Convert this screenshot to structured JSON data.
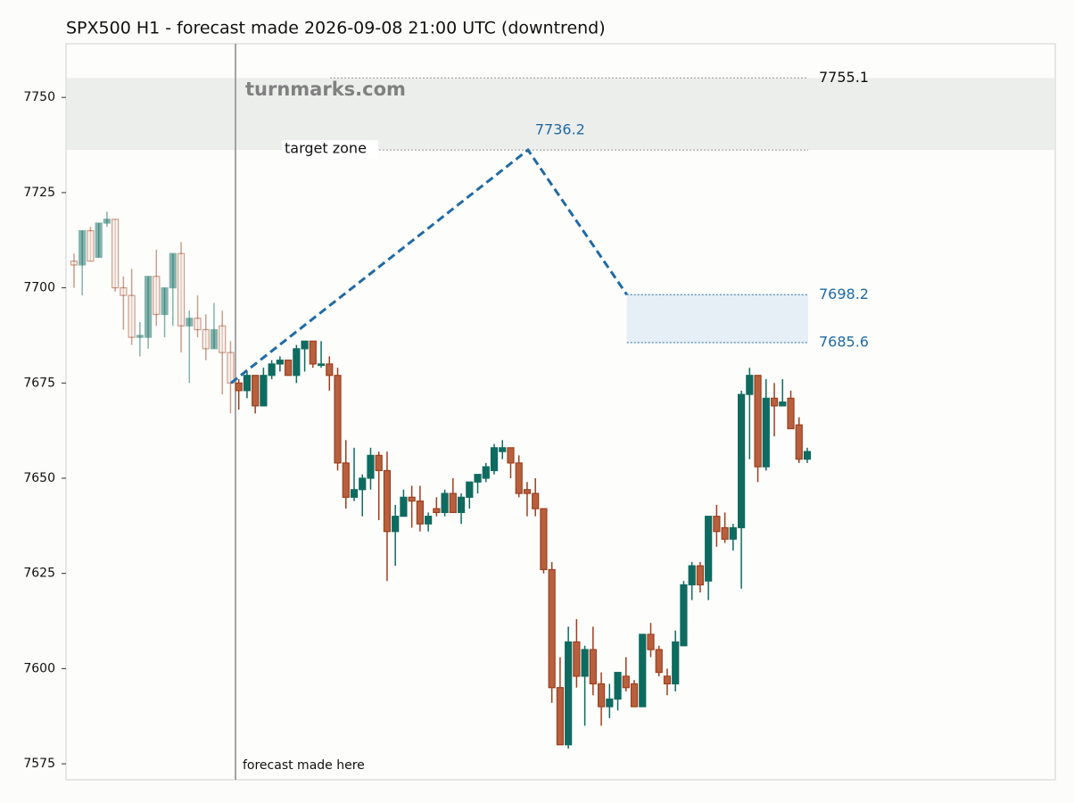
{
  "chart_data": {
    "type": "candlestick",
    "title": "SPX500 H1 - forecast made 2026-09-08 21:00 UTC (downtrend)",
    "watermark": "turnmarks.com",
    "ylim": [
      7570.8,
      7764.1
    ],
    "yticks": [
      7575,
      7600,
      7625,
      7650,
      7675,
      7700,
      7725,
      7750
    ],
    "xlim": [
      -0.97,
      119.1
    ],
    "up_color": "#0e6b60",
    "down_color": "#9c3f1f",
    "open": [
      7707,
      7706,
      7715,
      7708,
      7717,
      7718,
      7700,
      7698,
      7687,
      7687,
      7703,
      7693,
      7700,
      7709,
      7690,
      7692,
      7689,
      7684,
      7690,
      7683,
      7675,
      7673,
      7677,
      7669,
      7677,
      7680,
      7681,
      7677,
      7684,
      7686,
      7680,
      7680,
      7677,
      7654,
      7645,
      7647,
      7650,
      7656,
      7652,
      7636,
      7640,
      7645,
      7644,
      7638,
      7642,
      7641,
      7646,
      7641,
      7645,
      7649,
      7650,
      7652,
      7657,
      7658,
      7654,
      7647,
      7646,
      7642,
      7626,
      7595,
      7580,
      7607,
      7598,
      7605,
      7596,
      7590,
      7592,
      7598,
      7596,
      7590,
      7609,
      7605,
      7598,
      7596,
      7606,
      7622,
      7627,
      7623,
      7640,
      7637,
      7634,
      7637,
      7672,
      7677,
      7653,
      7671,
      7669,
      7671,
      7664,
      7655
    ],
    "high": [
      7709,
      7715,
      7716,
      7717,
      7720,
      7718,
      7703,
      7705,
      7691,
      7703,
      7710,
      7700,
      7709,
      7712,
      7694,
      7698,
      7693,
      7696,
      7694,
      7686,
      7676,
      7678,
      7677,
      7679,
      7681,
      7682,
      7681,
      7685,
      7686,
      7686,
      7686,
      7682,
      7679,
      7660,
      7658,
      7651,
      7658,
      7657,
      7657,
      7643,
      7647,
      7648,
      7648,
      7641,
      7645,
      7647,
      7650,
      7646,
      7649,
      7651,
      7654,
      7659,
      7660,
      7658,
      7656,
      7649,
      7650,
      7642,
      7628,
      7603,
      7611,
      7613,
      7606,
      7611,
      7599,
      7596,
      7599,
      7603,
      7597,
      7609,
      7612,
      7606,
      7600,
      7610,
      7623,
      7628,
      7628,
      7640,
      7643,
      7641,
      7638,
      7673,
      7679,
      7677,
      7676,
      7675,
      7676,
      7673,
      7666,
      7658
    ],
    "low": [
      7700,
      7698,
      7707,
      7708,
      7716,
      7699,
      7689,
      7685,
      7682,
      7684,
      7690,
      7687,
      7690,
      7683,
      7675,
      7687,
      7681,
      7684,
      7672,
      7667,
      7668,
      7671,
      7667,
      7669,
      7676,
      7678,
      7677,
      7675,
      7678,
      7679,
      7679,
      7673,
      7652,
      7642,
      7644,
      7640,
      7647,
      7639,
      7623,
      7627,
      7640,
      7637,
      7636,
      7636,
      7640,
      7640,
      7641,
      7638,
      7642,
      7646,
      7649,
      7651,
      7655,
      7650,
      7645,
      7640,
      7640,
      7625,
      7591,
      7580,
      7579,
      7595,
      7585,
      7593,
      7585,
      7587,
      7589,
      7594,
      7590,
      7590,
      7603,
      7598,
      7593,
      7594,
      7606,
      7618,
      7620,
      7618,
      7632,
      7633,
      7631,
      7621,
      7655,
      7649,
      7652,
      7661,
      7669,
      7663,
      7654,
      7654
    ],
    "close": [
      7706,
      7715,
      7707,
      7717,
      7718,
      7700,
      7698,
      7687,
      7687.5,
      7703,
      7693,
      7700,
      7709,
      7690,
      7692,
      7689,
      7684,
      7689,
      7683,
      7675,
      7673,
      7677,
      7669,
      7677,
      7680,
      7681,
      7677,
      7684,
      7686,
      7680,
      7680,
      7677,
      7654,
      7645,
      7647,
      7650,
      7656,
      7652,
      7636,
      7640,
      7645,
      7644,
      7638,
      7640,
      7641,
      7646,
      7641,
      7645,
      7649,
      7651,
      7653,
      7658,
      7658,
      7654,
      7646,
      7646,
      7642,
      7626,
      7595,
      7580,
      7607,
      7598,
      7605,
      7596,
      7590,
      7592,
      7599,
      7595,
      7590,
      7609,
      7605,
      7599,
      7596,
      7607,
      7622,
      7627,
      7622,
      7640,
      7636,
      7634,
      7637,
      7672,
      7677,
      7653,
      7671,
      7669,
      7670,
      7663,
      7655,
      7657
    ],
    "forecast_made_x": 19.6,
    "forecast_made_label": "forecast made here",
    "forecast": {
      "x": [
        19.06,
        55.1,
        67.1
      ],
      "values": [
        7675,
        7736.2,
        7698.2
      ],
      "color": "#1f6aa5"
    },
    "target_zone": {
      "low": 7736.2,
      "high": 7755.1,
      "label": "target zone"
    },
    "end_zone": {
      "low": 7685.6,
      "high": 7698.2
    }
  }
}
